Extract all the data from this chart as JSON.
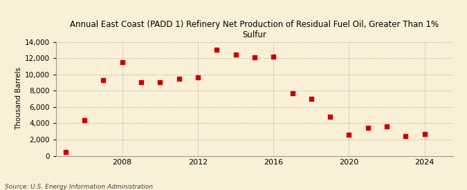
{
  "title": "Annual East Coast (PADD 1) Refinery Net Production of Residual Fuel Oil, Greater Than 1%\nSulfur",
  "ylabel": "Thousand Barrels",
  "source": "Source: U.S. Energy Information Administration",
  "background_color": "#faf0d7",
  "plot_background_color": "#faf0d7",
  "marker_color": "#cc0000",
  "years": [
    2005,
    2006,
    2007,
    2008,
    2009,
    2010,
    2011,
    2012,
    2013,
    2014,
    2015,
    2016,
    2017,
    2018,
    2019,
    2020,
    2021,
    2022,
    2023,
    2024
  ],
  "values": [
    500,
    4400,
    9300,
    11500,
    9000,
    9000,
    9500,
    9600,
    13000,
    12400,
    12100,
    12200,
    7700,
    7000,
    4800,
    2600,
    3400,
    3600,
    2400,
    2700
  ],
  "ylim": [
    0,
    14000
  ],
  "yticks": [
    0,
    2000,
    4000,
    6000,
    8000,
    10000,
    12000,
    14000
  ],
  "xticks": [
    2008,
    2012,
    2016,
    2020,
    2024
  ],
  "xlim": [
    2004.5,
    2025.5
  ]
}
